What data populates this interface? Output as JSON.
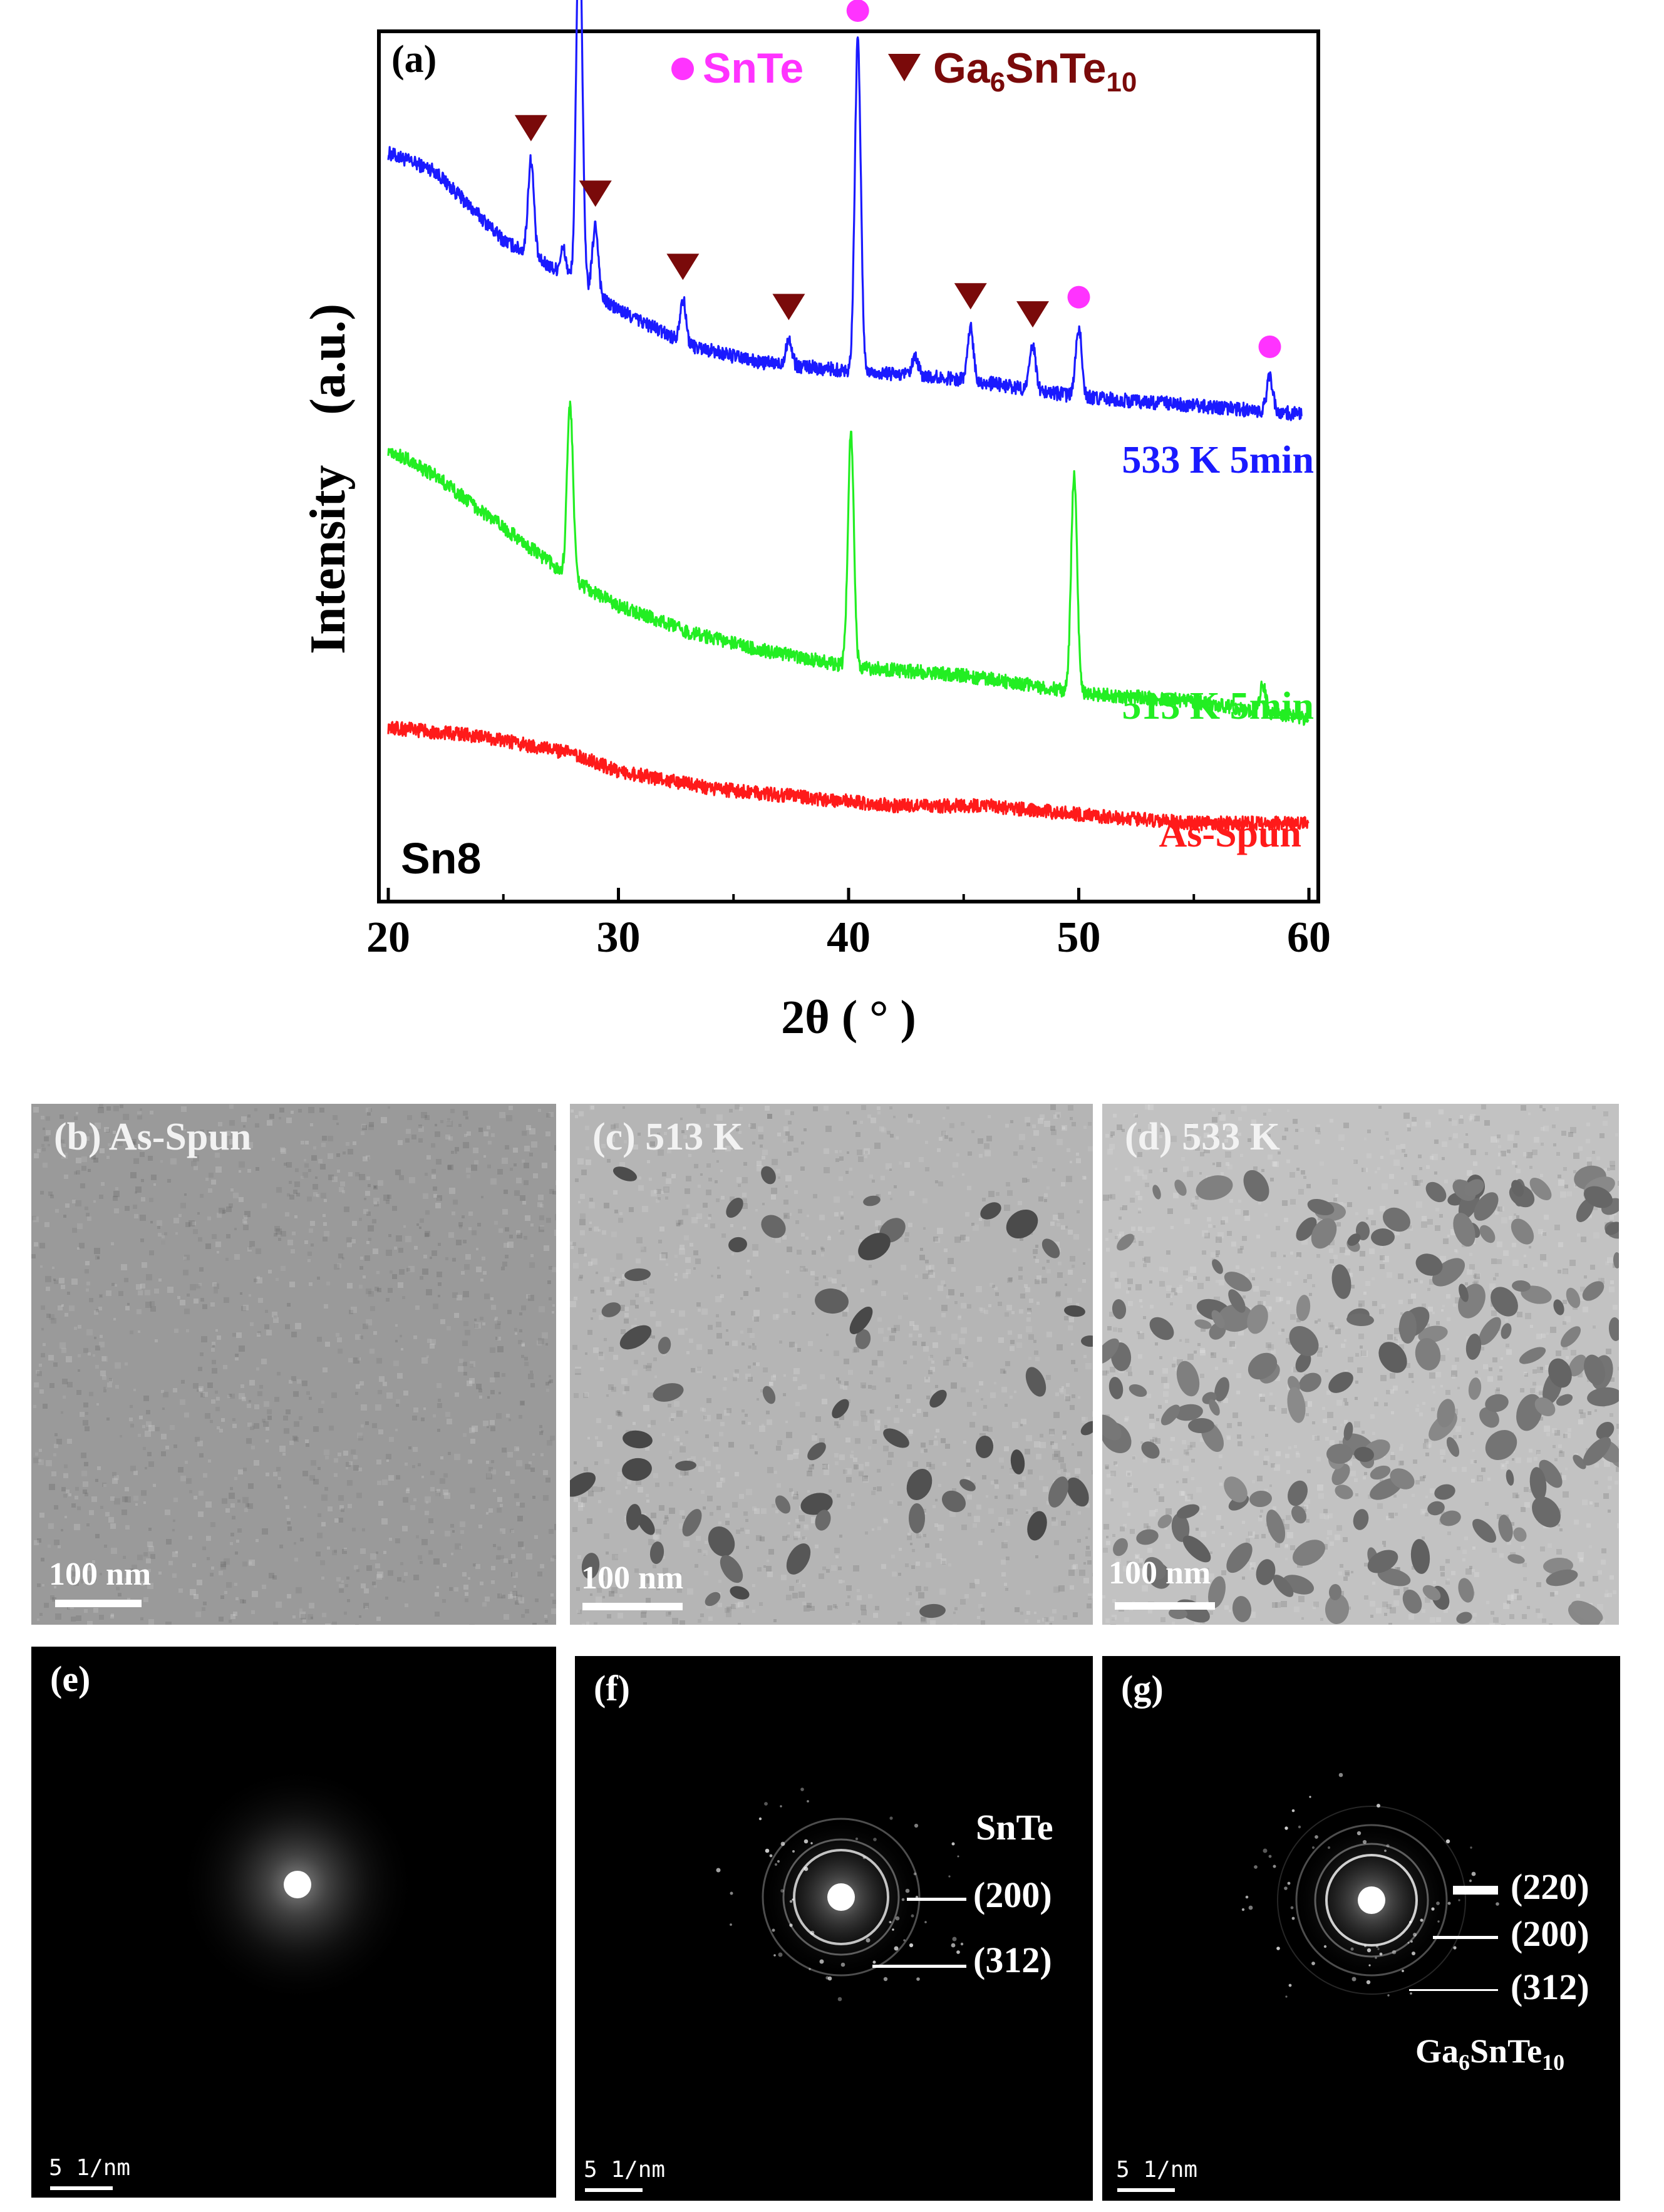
{
  "chart_data": {
    "type": "line",
    "panel_label": "(a)",
    "xlabel": "2θ ( ° )",
    "ylabel": "Intensity    (a.u.)",
    "xlim": [
      20,
      60
    ],
    "x_ticks": [
      "20",
      "30",
      "40",
      "50",
      "60"
    ],
    "sample_label": "Sn8",
    "legend": [
      {
        "marker": "circle",
        "label": "SnTe",
        "color": "#ff33ff"
      },
      {
        "marker": "triangle-down",
        "label": "Ga6SnTe10",
        "color": "#7a0a0a"
      }
    ],
    "series": [
      {
        "name": "533 K 5min",
        "color": "#1a1aff",
        "baseline": [
          [
            20.0,
            0.86
          ],
          [
            22.0,
            0.84
          ],
          [
            25.0,
            0.76
          ],
          [
            27.0,
            0.73
          ],
          [
            30.0,
            0.68
          ],
          [
            33.0,
            0.64
          ],
          [
            36.0,
            0.62
          ],
          [
            40.0,
            0.61
          ],
          [
            45.0,
            0.6
          ],
          [
            50.0,
            0.58
          ],
          [
            55.0,
            0.57
          ],
          [
            59.7,
            0.56
          ]
        ],
        "peaks": [
          {
            "x": 26.2,
            "height": 0.11,
            "phase": "Ga6SnTe10"
          },
          {
            "x": 27.6,
            "height": 0.03,
            "phase": ""
          },
          {
            "x": 28.3,
            "height": 0.43,
            "phase": "SnTe"
          },
          {
            "x": 29.0,
            "height": 0.08,
            "phase": "Ga6SnTe10"
          },
          {
            "x": 32.8,
            "height": 0.05,
            "phase": "Ga6SnTe10"
          },
          {
            "x": 37.4,
            "height": 0.03,
            "phase": "Ga6SnTe10"
          },
          {
            "x": 40.4,
            "height": 0.38,
            "phase": "SnTe"
          },
          {
            "x": 42.9,
            "height": 0.02,
            "phase": ""
          },
          {
            "x": 45.3,
            "height": 0.06,
            "phase": "Ga6SnTe10"
          },
          {
            "x": 48.0,
            "height": 0.05,
            "phase": "Ga6SnTe10"
          },
          {
            "x": 50.0,
            "height": 0.08,
            "phase": "SnTe"
          },
          {
            "x": 58.3,
            "height": 0.04,
            "phase": "SnTe"
          }
        ]
      },
      {
        "name": "513 K 5min",
        "color": "#22ee22",
        "baseline": [
          [
            20.0,
            0.52
          ],
          [
            22.0,
            0.49
          ],
          [
            24.0,
            0.45
          ],
          [
            26.0,
            0.41
          ],
          [
            28.0,
            0.37
          ],
          [
            30.0,
            0.34
          ],
          [
            33.0,
            0.31
          ],
          [
            36.0,
            0.29
          ],
          [
            40.0,
            0.27
          ],
          [
            45.0,
            0.26
          ],
          [
            50.0,
            0.24
          ],
          [
            55.0,
            0.23
          ],
          [
            60.0,
            0.21
          ]
        ],
        "peaks": [
          {
            "x": 27.9,
            "height": 0.2,
            "phase": "SnTe"
          },
          {
            "x": 40.1,
            "height": 0.27,
            "phase": "SnTe"
          },
          {
            "x": 49.8,
            "height": 0.25,
            "phase": "SnTe"
          },
          {
            "x": 58.0,
            "height": 0.03,
            "phase": "SnTe"
          }
        ]
      },
      {
        "name": "As-Spun",
        "color": "#ff1a1a",
        "baseline": [
          [
            20.0,
            0.2
          ],
          [
            24.0,
            0.19
          ],
          [
            28.0,
            0.17
          ],
          [
            30.0,
            0.15
          ],
          [
            34.0,
            0.13
          ],
          [
            38.0,
            0.12
          ],
          [
            42.0,
            0.11
          ],
          [
            46.0,
            0.11
          ],
          [
            50.0,
            0.1
          ],
          [
            55.0,
            0.09
          ],
          [
            60.0,
            0.09
          ]
        ],
        "peaks": []
      }
    ],
    "phase_markers": {
      "SnTe": [
        28.3,
        40.4,
        50.0,
        58.3
      ],
      "Ga6SnTe10": [
        26.2,
        29.0,
        32.8,
        37.4,
        45.3,
        48.0
      ]
    }
  },
  "tem": [
    {
      "label": "(b) As-Spun",
      "scale": "100 nm",
      "particles": 0
    },
    {
      "label": "(c) 513 K",
      "scale": "100 nm",
      "particles": 55
    },
    {
      "label": "(d) 533 K",
      "scale": "100 nm",
      "particles": 180
    }
  ],
  "saed": [
    {
      "label": "(e)",
      "scale": "5 1/nm",
      "phase": "",
      "planes": []
    },
    {
      "label": "(f)",
      "scale": "5 1/nm",
      "phase": "SnTe",
      "planes": [
        "(200)",
        "(312)"
      ]
    },
    {
      "label": "(g)",
      "scale": "5 1/nm",
      "phase": "Ga6SnTe10",
      "planes": [
        "(220)",
        "(200)",
        "(312)"
      ]
    }
  ]
}
